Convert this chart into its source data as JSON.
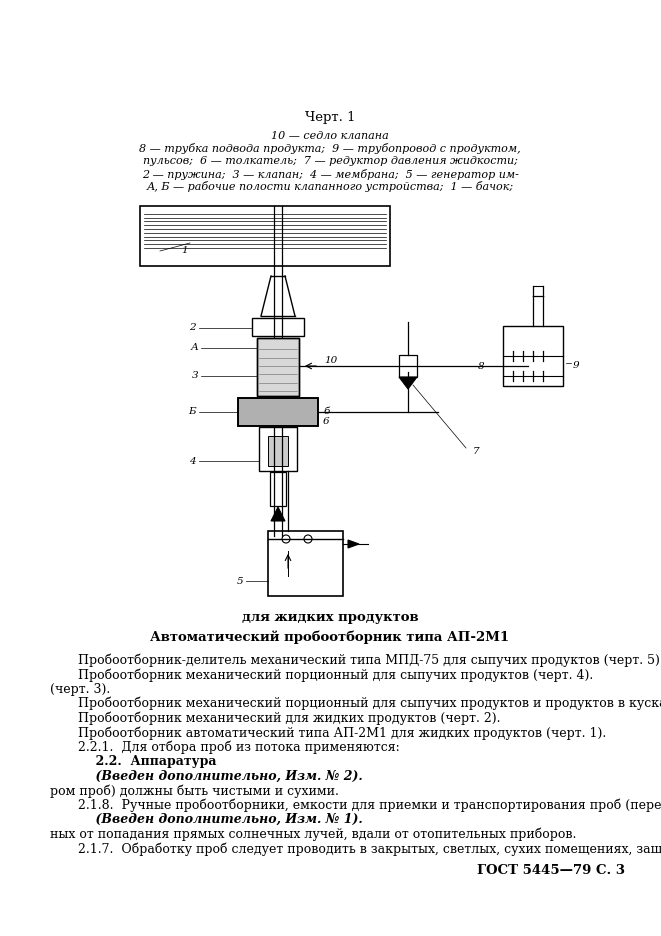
{
  "header": "ГОСТ 5445—79 С. 3",
  "text_217_line1": "2.1.7.  Обработку проб следует проводить в закрытых, светлых, сухих помещениях, защищен-",
  "text_217_line2": "ных от попадания прямых солнечных лучей, вдали от отопительных приборов.",
  "bold_1": "    (Введен дополнительно, Изм. № 1).",
  "text_218_line1": "2.1.8.  Ручные пробоотборники, емкости для приемки и транспортирования проб (перед отбо-",
  "text_218_line2": "ром проб) должны быть чистыми и сухими.",
  "bold_2": "    (Введен дополнительно, Изм. № 2).",
  "bold_3": "    2.2.  Аппаратура",
  "para_221": "2.2.1.  Для отбора проб из потока применяются:",
  "line1": "Пробоотборник автоматический типа АП-2М1 для жидких продуктов (черт. 1).",
  "line2": "Пробоотборник механический для жидких продуктов (черт. 2).",
  "line3a": "Пробоотборник механический порционный для сыпучих продуктов и продуктов в кусках",
  "line3b": "(черт. 3).",
  "line4": "Пробоотборник механический порционный для сыпучих продуктов (черт. 4).",
  "line5": "Пробоотборник-делитель механический типа МПД-75 для сыпучих продуктов (черт. 5).",
  "diag_title1": "Автоматический пробоотборник типа АП-2М1",
  "diag_title2": "для жидких продуктов",
  "caption_line1": "А, Б — рабочие полости клапанного устройства;  1 — бачок;",
  "caption_line2": "2 — пружина;  3 — клапан;  4 — мембрана;  5 — генератор им-",
  "caption_line3": "пульсов;  6 — толкатель;  7 — редуктор давления жидкости;",
  "caption_line4": "8 — трубка подвода продукта;  9 — трубопровод с продуктом,",
  "caption_line5": "10 — седло клапана",
  "chert": "Черт. 1",
  "bg_color": "#ffffff",
  "text_color": "#000000"
}
